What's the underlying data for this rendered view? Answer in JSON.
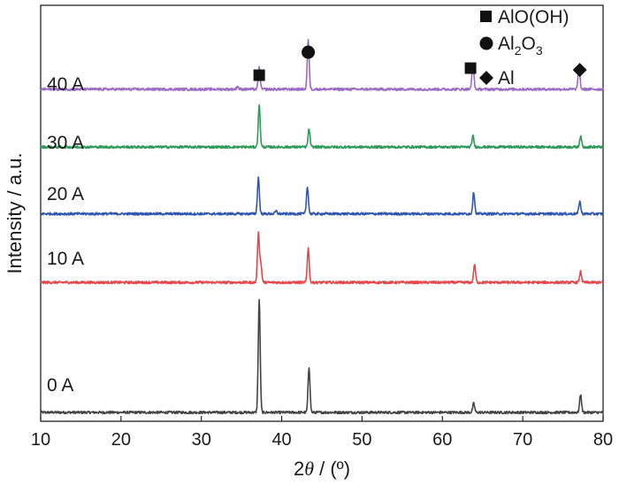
{
  "chart_data": {
    "type": "line",
    "xlabel_prefix": "2",
    "xlabel_symbol": "θ",
    "xlabel_suffix": " / (º)",
    "ylabel": "Intensity / a.u.",
    "xlim": [
      10,
      80
    ],
    "xticks": [
      10,
      20,
      30,
      40,
      50,
      60,
      70,
      80
    ],
    "grid": false,
    "legend_position": "top-right",
    "legend": [
      {
        "marker": "square",
        "text": "AlO(OH)"
      },
      {
        "marker": "circle",
        "text_main": "Al",
        "sub1": "2",
        "text_mid": "O",
        "sub2": "3"
      },
      {
        "marker": "diamond",
        "text": "Al"
      }
    ],
    "peak_markers": [
      {
        "marker": "square",
        "x": 37.2
      },
      {
        "marker": "circle",
        "x": 43.3
      },
      {
        "marker": "square",
        "x": 63.5
      },
      {
        "marker": "diamond",
        "x": 77.1
      }
    ],
    "series": [
      {
        "name": "0 A",
        "color": "#444444",
        "baseline": 0.0,
        "peaks": [
          {
            "x": 37.2,
            "h": 6.2
          },
          {
            "x": 43.4,
            "h": 2.5
          },
          {
            "x": 63.9,
            "h": 0.5
          },
          {
            "x": 77.2,
            "h": 1.0
          }
        ]
      },
      {
        "name": "10 A",
        "color": "#e5464a",
        "baseline": 7.2,
        "peaks": [
          {
            "x": 37.1,
            "h": 2.7
          },
          {
            "x": 37.4,
            "h": 1.0
          },
          {
            "x": 43.3,
            "h": 1.9
          },
          {
            "x": 64.0,
            "h": 1.0
          },
          {
            "x": 77.2,
            "h": 0.6
          }
        ]
      },
      {
        "name": "20 A",
        "color": "#3057b0",
        "baseline": 11.0,
        "peaks": [
          {
            "x": 37.1,
            "h": 2.0
          },
          {
            "x": 39.3,
            "h": 0.15
          },
          {
            "x": 43.2,
            "h": 1.5
          },
          {
            "x": 63.9,
            "h": 1.2
          },
          {
            "x": 77.1,
            "h": 0.7
          }
        ]
      },
      {
        "name": "30 A",
        "color": "#2f9a5a",
        "baseline": 14.7,
        "peaks": [
          {
            "x": 37.2,
            "h": 2.3
          },
          {
            "x": 43.4,
            "h": 1.0
          },
          {
            "x": 63.8,
            "h": 0.6
          },
          {
            "x": 77.2,
            "h": 0.6
          }
        ]
      },
      {
        "name": "40 A",
        "color": "#9a6ac4",
        "baseline": 17.9,
        "peaks": [
          {
            "x": 34.5,
            "h": 0.15
          },
          {
            "x": 37.2,
            "h": 1.2
          },
          {
            "x": 43.3,
            "h": 2.7
          },
          {
            "x": 63.8,
            "h": 1.5
          },
          {
            "x": 77.0,
            "h": 1.3
          }
        ]
      }
    ]
  }
}
